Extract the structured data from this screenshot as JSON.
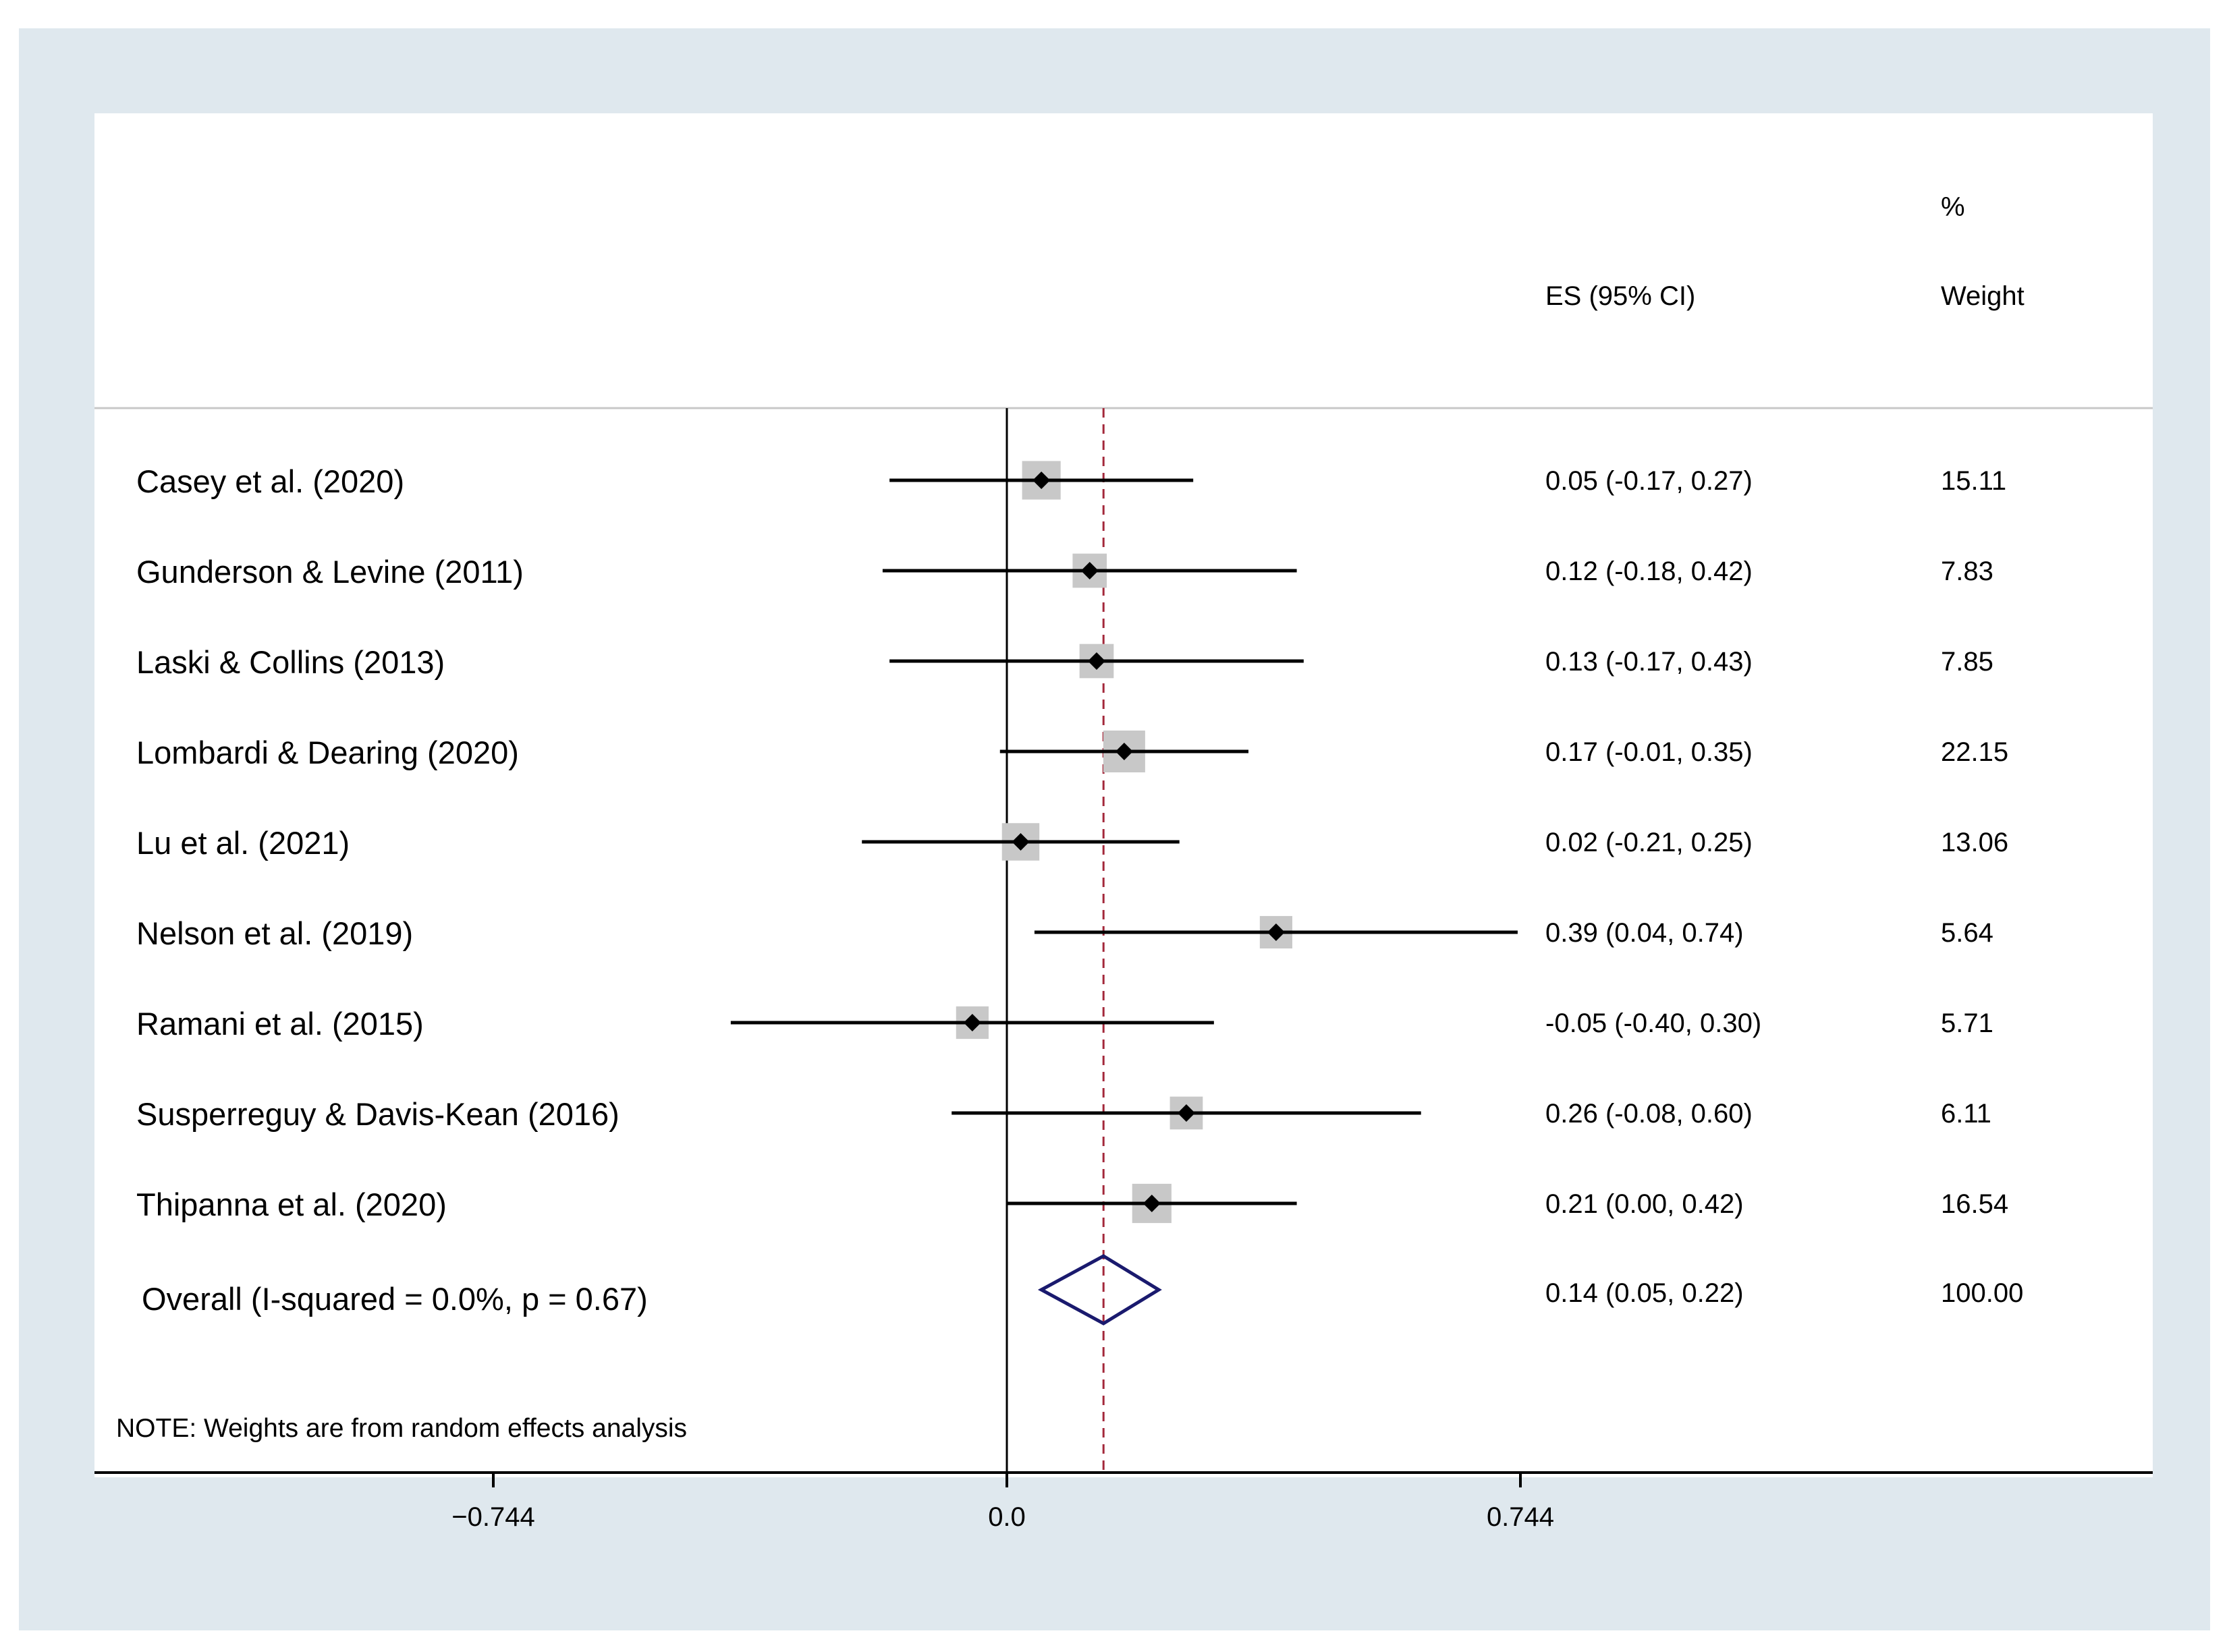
{
  "chart_data": {
    "type": "forest",
    "header": {
      "es_label": "ES (95% CI)",
      "weight_pct": "%",
      "weight_label": "Weight"
    },
    "studies": [
      {
        "label": "Casey et al. (2020)",
        "es": 0.05,
        "lo": -0.17,
        "hi": 0.27,
        "es_text": "0.05 (-0.17, 0.27)",
        "weight": 15.11,
        "weight_text": "15.11"
      },
      {
        "label": "Gunderson & Levine (2011)",
        "es": 0.12,
        "lo": -0.18,
        "hi": 0.42,
        "es_text": "0.12 (-0.18, 0.42)",
        "weight": 7.83,
        "weight_text": "7.83"
      },
      {
        "label": "Laski & Collins (2013)",
        "es": 0.13,
        "lo": -0.17,
        "hi": 0.43,
        "es_text": "0.13 (-0.17, 0.43)",
        "weight": 7.85,
        "weight_text": "7.85"
      },
      {
        "label": "Lombardi & Dearing (2020)",
        "es": 0.17,
        "lo": -0.01,
        "hi": 0.35,
        "es_text": "0.17 (-0.01, 0.35)",
        "weight": 22.15,
        "weight_text": "22.15"
      },
      {
        "label": "Lu et al. (2021)",
        "es": 0.02,
        "lo": -0.21,
        "hi": 0.25,
        "es_text": "0.02 (-0.21, 0.25)",
        "weight": 13.06,
        "weight_text": "13.06"
      },
      {
        "label": "Nelson et al. (2019)",
        "es": 0.39,
        "lo": 0.04,
        "hi": 0.74,
        "es_text": "0.39 (0.04, 0.74)",
        "weight": 5.64,
        "weight_text": "5.64"
      },
      {
        "label": "Ramani et al. (2015)",
        "es": -0.05,
        "lo": -0.4,
        "hi": 0.3,
        "es_text": "-0.05 (-0.40, 0.30)",
        "weight": 5.71,
        "weight_text": "5.71"
      },
      {
        "label": "Susperreguy & Davis-Kean (2016)",
        "es": 0.26,
        "lo": -0.08,
        "hi": 0.6,
        "es_text": "0.26 (-0.08, 0.60)",
        "weight": 6.11,
        "weight_text": "6.11"
      },
      {
        "label": "Thipanna et al. (2020)",
        "es": 0.21,
        "lo": 0.0,
        "hi": 0.42,
        "es_text": "0.21 (0.00, 0.42)",
        "weight": 16.54,
        "weight_text": "16.54"
      }
    ],
    "overall": {
      "label": "Overall (I-squared = 0.0%, p = 0.67)",
      "es": 0.14,
      "lo": 0.05,
      "hi": 0.22,
      "es_text": "0.14 (0.05, 0.22)",
      "weight_text": "100.00"
    },
    "x_axis": {
      "ticks": [
        -0.744,
        0.0,
        0.744
      ],
      "tick_labels": [
        "−0.744",
        "0.0",
        "0.744"
      ],
      "range": [
        -1.32,
        1.66
      ]
    },
    "null_line": 0.0,
    "note": "NOTE: Weights are from random effects analysis",
    "colors": {
      "line": "#000000",
      "weight_box": "#c8c8c8",
      "overall_diamond": "#1a1a6e",
      "overall_line": "#a3283a",
      "frame": "#dfe8ee",
      "panel": "#ffffff",
      "separator": "#c8c8c8"
    }
  }
}
